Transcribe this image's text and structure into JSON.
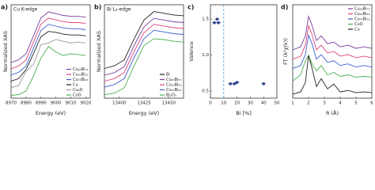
{
  "chart_data": [
    {
      "type": "line",
      "label": "a)",
      "title": "Cu K-edge",
      "xlabel": "Energy (eV)",
      "ylabel": "Normalized XAS",
      "x": [
        8970,
        8975,
        8980,
        8985,
        8990,
        8995,
        9000,
        9005,
        9010,
        9015,
        9020
      ],
      "xlim": [
        8970,
        9023
      ],
      "ylim": [
        0,
        1.05
      ],
      "xticks": [
        8970,
        8980,
        8990,
        9000,
        9010,
        9020
      ],
      "legend": "lower right",
      "series": [
        {
          "name": "Cu₂₅Bi₇₅",
          "color": "#7b3f9e",
          "values": [
            0.4,
            0.43,
            0.5,
            0.7,
            0.9,
            0.97,
            0.95,
            0.93,
            0.92,
            0.92,
            0.91
          ]
        },
        {
          "name": "Cu₅₀Bi₅₀",
          "color": "#e0457b",
          "values": [
            0.33,
            0.36,
            0.43,
            0.63,
            0.83,
            0.9,
            0.88,
            0.86,
            0.85,
            0.85,
            0.84
          ]
        },
        {
          "name": "Cu₇₅Bi₂₅",
          "color": "#3a5fcd",
          "values": [
            0.26,
            0.29,
            0.36,
            0.56,
            0.76,
            0.83,
            0.81,
            0.79,
            0.78,
            0.78,
            0.77
          ]
        },
        {
          "name": "Cu",
          "color": "#222222",
          "values": [
            0.19,
            0.22,
            0.32,
            0.5,
            0.69,
            0.75,
            0.74,
            0.72,
            0.71,
            0.71,
            0.7
          ]
        },
        {
          "name": "Cu₂O",
          "color": "#999999",
          "values": [
            0.12,
            0.14,
            0.3,
            0.38,
            0.6,
            0.62,
            0.66,
            0.64,
            0.62,
            0.63,
            0.62
          ]
        },
        {
          "name": "CuO",
          "color": "#4caf50",
          "values": [
            0.03,
            0.04,
            0.08,
            0.25,
            0.45,
            0.58,
            0.52,
            0.48,
            0.5,
            0.49,
            0.48
          ]
        }
      ]
    },
    {
      "type": "line",
      "label": "b)",
      "title": "Bi L₃-edge",
      "xlabel": "Energy (eV)",
      "ylabel": "Normalized XAS",
      "x": [
        13385,
        13395,
        13405,
        13415,
        13425,
        13435,
        13445,
        13455,
        13465
      ],
      "xlim": [
        13385,
        13465
      ],
      "ylim": [
        0,
        1.1
      ],
      "xticks": [
        13400,
        13425,
        13450
      ],
      "legend": "lower right",
      "series": [
        {
          "name": "Bi",
          "color": "#222222",
          "values": [
            0.35,
            0.38,
            0.45,
            0.7,
            0.92,
            1.02,
            1.0,
            0.98,
            0.97
          ]
        },
        {
          "name": "Cu₂₅Bi₇₅",
          "color": "#7b3f9e",
          "values": [
            0.27,
            0.3,
            0.37,
            0.62,
            0.84,
            0.94,
            0.92,
            0.9,
            0.89
          ]
        },
        {
          "name": "Cu₅₀Bi₅₀",
          "color": "#e0457b",
          "values": [
            0.2,
            0.23,
            0.3,
            0.55,
            0.77,
            0.87,
            0.85,
            0.83,
            0.82
          ]
        },
        {
          "name": "Cu₇₅Bi₂₅",
          "color": "#3a5fcd",
          "values": [
            0.13,
            0.16,
            0.23,
            0.48,
            0.7,
            0.8,
            0.78,
            0.76,
            0.75
          ]
        },
        {
          "name": "Bi₂O₃",
          "color": "#4caf50",
          "values": [
            0.04,
            0.06,
            0.12,
            0.38,
            0.62,
            0.7,
            0.69,
            0.67,
            0.66
          ]
        }
      ]
    },
    {
      "type": "scatter",
      "label": "c)",
      "xlabel": "Bi [%]",
      "ylabel": "Valence",
      "vline": 10,
      "xlim": [
        0,
        50
      ],
      "ylim": [
        0.4,
        1.7
      ],
      "xticks": [
        0,
        10,
        20,
        30,
        40,
        50
      ],
      "yticks": [
        {
          "value": 0.5,
          "label": "0.5"
        },
        {
          "value": 1,
          "label": "1.0"
        },
        {
          "value": 1.5,
          "label": "1.5"
        }
      ],
      "series": [
        {
          "color": "#2c3e8c",
          "x": [
            3,
            5,
            6,
            15,
            18,
            20,
            40
          ],
          "values": [
            1.45,
            1.5,
            1.45,
            0.6,
            0.6,
            0.62,
            0.6
          ]
        }
      ]
    },
    {
      "type": "line",
      "label": "d)",
      "xlabel": "R (Å)",
      "ylabel": "FT (k²χ(k))",
      "x": [
        1,
        1.5,
        1.8,
        2,
        2.2,
        2.5,
        2.8,
        3.2,
        3.6,
        4,
        4.5,
        5,
        5.5,
        6
      ],
      "xlim": [
        1,
        6
      ],
      "ylim": [
        0,
        1.2
      ],
      "xticks": [
        1,
        2,
        3,
        4,
        5,
        6
      ],
      "legend": "upper right",
      "series": [
        {
          "name": "Cu₂₅Bi₇₅",
          "color": "#7b3f9e",
          "values": [
            0.62,
            0.66,
            0.8,
            1.05,
            0.95,
            0.74,
            0.8,
            0.7,
            0.72,
            0.66,
            0.68,
            0.64,
            0.66,
            0.64
          ]
        },
        {
          "name": "Cu₅₀Bi₅₀",
          "color": "#e0457b",
          "values": [
            0.5,
            0.54,
            0.68,
            0.93,
            0.83,
            0.62,
            0.68,
            0.58,
            0.6,
            0.54,
            0.56,
            0.52,
            0.54,
            0.52
          ]
        },
        {
          "name": "Cu₇₅Bi₂₅",
          "color": "#3a5fcd",
          "values": [
            0.38,
            0.42,
            0.56,
            0.81,
            0.71,
            0.5,
            0.56,
            0.46,
            0.48,
            0.42,
            0.44,
            0.4,
            0.42,
            0.4
          ]
        },
        {
          "name": "CuO",
          "color": "#4caf50",
          "values": [
            0.22,
            0.3,
            0.48,
            0.55,
            0.45,
            0.35,
            0.42,
            0.3,
            0.33,
            0.28,
            0.3,
            0.27,
            0.28,
            0.27
          ]
        },
        {
          "name": "Cu",
          "color": "#222222",
          "values": [
            0.05,
            0.08,
            0.2,
            0.55,
            0.4,
            0.15,
            0.25,
            0.12,
            0.18,
            0.08,
            0.1,
            0.07,
            0.08,
            0.07
          ]
        }
      ]
    }
  ]
}
